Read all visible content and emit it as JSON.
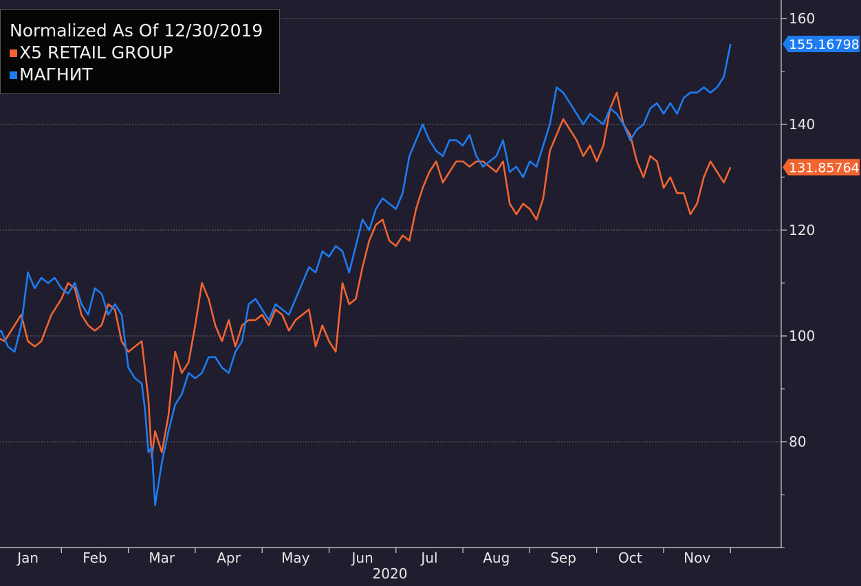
{
  "legend": {
    "title": "Normalized As Of 12/30/2019",
    "entries": [
      {
        "label": "X5 RETAIL GROUP",
        "color": "#f26531"
      },
      {
        "label": "МАГНИТ",
        "color": "#1e7cf0"
      }
    ]
  },
  "chart_data": {
    "type": "line",
    "title": "Normalized As Of 12/30/2019",
    "xlabel": "2020",
    "ylabel": "",
    "ylim": [
      57,
      164
    ],
    "yticks": [
      80,
      100,
      120,
      140,
      160
    ],
    "grid": true,
    "legend_position": "top-left",
    "x_month_labels": [
      "Jan",
      "Feb",
      "Mar",
      "Apr",
      "May",
      "Jun",
      "Jul",
      "Aug",
      "Sep",
      "Oct",
      "Nov"
    ],
    "x_year_label": "2020",
    "x_unit": "months into 2020 (0 = Jan 1)",
    "x_range": [
      0,
      11.9
    ],
    "series": [
      {
        "name": "X5 RETAIL GROUP",
        "color": "#f26531",
        "last_value_label": "131.85764",
        "points": [
          [
            0.0,
            100
          ],
          [
            0.15,
            99
          ],
          [
            0.25,
            101
          ],
          [
            0.4,
            104
          ],
          [
            0.5,
            99
          ],
          [
            0.6,
            98
          ],
          [
            0.7,
            99
          ],
          [
            0.85,
            104
          ],
          [
            1.0,
            107
          ],
          [
            1.1,
            110
          ],
          [
            1.2,
            109
          ],
          [
            1.3,
            104
          ],
          [
            1.4,
            102
          ],
          [
            1.5,
            101
          ],
          [
            1.6,
            102
          ],
          [
            1.7,
            106
          ],
          [
            1.8,
            105
          ],
          [
            1.9,
            99
          ],
          [
            2.0,
            97
          ],
          [
            2.1,
            98
          ],
          [
            2.2,
            99
          ],
          [
            2.3,
            88
          ],
          [
            2.35,
            77
          ],
          [
            2.4,
            82
          ],
          [
            2.5,
            78
          ],
          [
            2.6,
            85
          ],
          [
            2.7,
            97
          ],
          [
            2.8,
            93
          ],
          [
            2.9,
            95
          ],
          [
            3.0,
            102
          ],
          [
            3.1,
            110
          ],
          [
            3.2,
            107
          ],
          [
            3.3,
            102
          ],
          [
            3.4,
            99
          ],
          [
            3.5,
            103
          ],
          [
            3.6,
            98
          ],
          [
            3.7,
            102
          ],
          [
            3.8,
            103
          ],
          [
            3.9,
            103
          ],
          [
            4.0,
            104
          ],
          [
            4.1,
            102
          ],
          [
            4.2,
            105
          ],
          [
            4.3,
            104
          ],
          [
            4.4,
            101
          ],
          [
            4.5,
            103
          ],
          [
            4.6,
            104
          ],
          [
            4.7,
            105
          ],
          [
            4.8,
            98
          ],
          [
            4.9,
            102
          ],
          [
            5.0,
            99
          ],
          [
            5.1,
            97
          ],
          [
            5.2,
            110
          ],
          [
            5.3,
            106
          ],
          [
            5.4,
            107
          ],
          [
            5.5,
            113
          ],
          [
            5.6,
            118
          ],
          [
            5.7,
            121
          ],
          [
            5.8,
            122
          ],
          [
            5.9,
            118
          ],
          [
            6.0,
            117
          ],
          [
            6.1,
            119
          ],
          [
            6.2,
            118
          ],
          [
            6.3,
            124
          ],
          [
            6.4,
            128
          ],
          [
            6.5,
            131
          ],
          [
            6.6,
            133
          ],
          [
            6.7,
            129
          ],
          [
            6.8,
            131
          ],
          [
            6.9,
            133
          ],
          [
            7.0,
            133
          ],
          [
            7.1,
            132
          ],
          [
            7.2,
            133
          ],
          [
            7.3,
            133
          ],
          [
            7.4,
            132
          ],
          [
            7.5,
            131
          ],
          [
            7.6,
            133
          ],
          [
            7.7,
            125
          ],
          [
            7.8,
            123
          ],
          [
            7.9,
            125
          ],
          [
            8.0,
            124
          ],
          [
            8.1,
            122
          ],
          [
            8.2,
            126
          ],
          [
            8.3,
            135
          ],
          [
            8.4,
            138
          ],
          [
            8.5,
            141
          ],
          [
            8.6,
            139
          ],
          [
            8.7,
            137
          ],
          [
            8.8,
            134
          ],
          [
            8.9,
            136
          ],
          [
            9.0,
            133
          ],
          [
            9.1,
            136
          ],
          [
            9.2,
            143
          ],
          [
            9.3,
            146
          ],
          [
            9.4,
            140
          ],
          [
            9.5,
            138
          ],
          [
            9.6,
            133
          ],
          [
            9.7,
            130
          ],
          [
            9.8,
            134
          ],
          [
            9.9,
            133
          ],
          [
            10.0,
            128
          ],
          [
            10.1,
            130
          ],
          [
            10.2,
            127
          ],
          [
            10.3,
            127
          ],
          [
            10.4,
            123
          ],
          [
            10.5,
            125
          ],
          [
            10.6,
            130
          ],
          [
            10.7,
            133
          ],
          [
            10.8,
            131
          ],
          [
            10.9,
            129
          ],
          [
            11.0,
            131.9
          ]
        ]
      },
      {
        "name": "МАГНИТ",
        "color": "#1e7cf0",
        "last_value_label": "155.16798",
        "points": [
          [
            0.0,
            100
          ],
          [
            0.1,
            101
          ],
          [
            0.2,
            98
          ],
          [
            0.3,
            97
          ],
          [
            0.4,
            102
          ],
          [
            0.5,
            112
          ],
          [
            0.6,
            109
          ],
          [
            0.7,
            111
          ],
          [
            0.8,
            110
          ],
          [
            0.9,
            111
          ],
          [
            1.0,
            109
          ],
          [
            1.1,
            108
          ],
          [
            1.2,
            110
          ],
          [
            1.3,
            106
          ],
          [
            1.4,
            104
          ],
          [
            1.5,
            109
          ],
          [
            1.6,
            108
          ],
          [
            1.7,
            104
          ],
          [
            1.8,
            106
          ],
          [
            1.9,
            104
          ],
          [
            2.0,
            94
          ],
          [
            2.1,
            92
          ],
          [
            2.2,
            91
          ],
          [
            2.25,
            86
          ],
          [
            2.3,
            78
          ],
          [
            2.35,
            79
          ],
          [
            2.4,
            68
          ],
          [
            2.5,
            76
          ],
          [
            2.6,
            82
          ],
          [
            2.7,
            87
          ],
          [
            2.8,
            89
          ],
          [
            2.9,
            93
          ],
          [
            3.0,
            92
          ],
          [
            3.1,
            93
          ],
          [
            3.2,
            96
          ],
          [
            3.3,
            96
          ],
          [
            3.4,
            94
          ],
          [
            3.5,
            93
          ],
          [
            3.6,
            97
          ],
          [
            3.7,
            99
          ],
          [
            3.8,
            106
          ],
          [
            3.9,
            107
          ],
          [
            4.0,
            105
          ],
          [
            4.1,
            103
          ],
          [
            4.2,
            106
          ],
          [
            4.3,
            105
          ],
          [
            4.4,
            104
          ],
          [
            4.5,
            107
          ],
          [
            4.6,
            110
          ],
          [
            4.7,
            113
          ],
          [
            4.8,
            112
          ],
          [
            4.9,
            116
          ],
          [
            5.0,
            115
          ],
          [
            5.1,
            117
          ],
          [
            5.2,
            116
          ],
          [
            5.3,
            112
          ],
          [
            5.4,
            117
          ],
          [
            5.5,
            122
          ],
          [
            5.6,
            120
          ],
          [
            5.7,
            124
          ],
          [
            5.8,
            126
          ],
          [
            5.9,
            125
          ],
          [
            6.0,
            124
          ],
          [
            6.1,
            127
          ],
          [
            6.2,
            134
          ],
          [
            6.3,
            137
          ],
          [
            6.4,
            140
          ],
          [
            6.5,
            137
          ],
          [
            6.6,
            135
          ],
          [
            6.7,
            134
          ],
          [
            6.8,
            137
          ],
          [
            6.9,
            137
          ],
          [
            7.0,
            136
          ],
          [
            7.1,
            138
          ],
          [
            7.2,
            134
          ],
          [
            7.3,
            132
          ],
          [
            7.4,
            133
          ],
          [
            7.5,
            134
          ],
          [
            7.6,
            137
          ],
          [
            7.7,
            131
          ],
          [
            7.8,
            132
          ],
          [
            7.9,
            130
          ],
          [
            8.0,
            133
          ],
          [
            8.1,
            132
          ],
          [
            8.2,
            136
          ],
          [
            8.3,
            140
          ],
          [
            8.4,
            147
          ],
          [
            8.5,
            146
          ],
          [
            8.6,
            144
          ],
          [
            8.7,
            142
          ],
          [
            8.8,
            140
          ],
          [
            8.9,
            142
          ],
          [
            9.0,
            141
          ],
          [
            9.1,
            140
          ],
          [
            9.2,
            143
          ],
          [
            9.3,
            142
          ],
          [
            9.4,
            140
          ],
          [
            9.5,
            137
          ],
          [
            9.6,
            139
          ],
          [
            9.7,
            140
          ],
          [
            9.8,
            143
          ],
          [
            9.9,
            144
          ],
          [
            10.0,
            142
          ],
          [
            10.1,
            144
          ],
          [
            10.2,
            142
          ],
          [
            10.3,
            145
          ],
          [
            10.4,
            146
          ],
          [
            10.5,
            146
          ],
          [
            10.6,
            147
          ],
          [
            10.7,
            146
          ],
          [
            10.8,
            147
          ],
          [
            10.9,
            149
          ],
          [
            11.0,
            155.2
          ]
        ]
      }
    ]
  }
}
